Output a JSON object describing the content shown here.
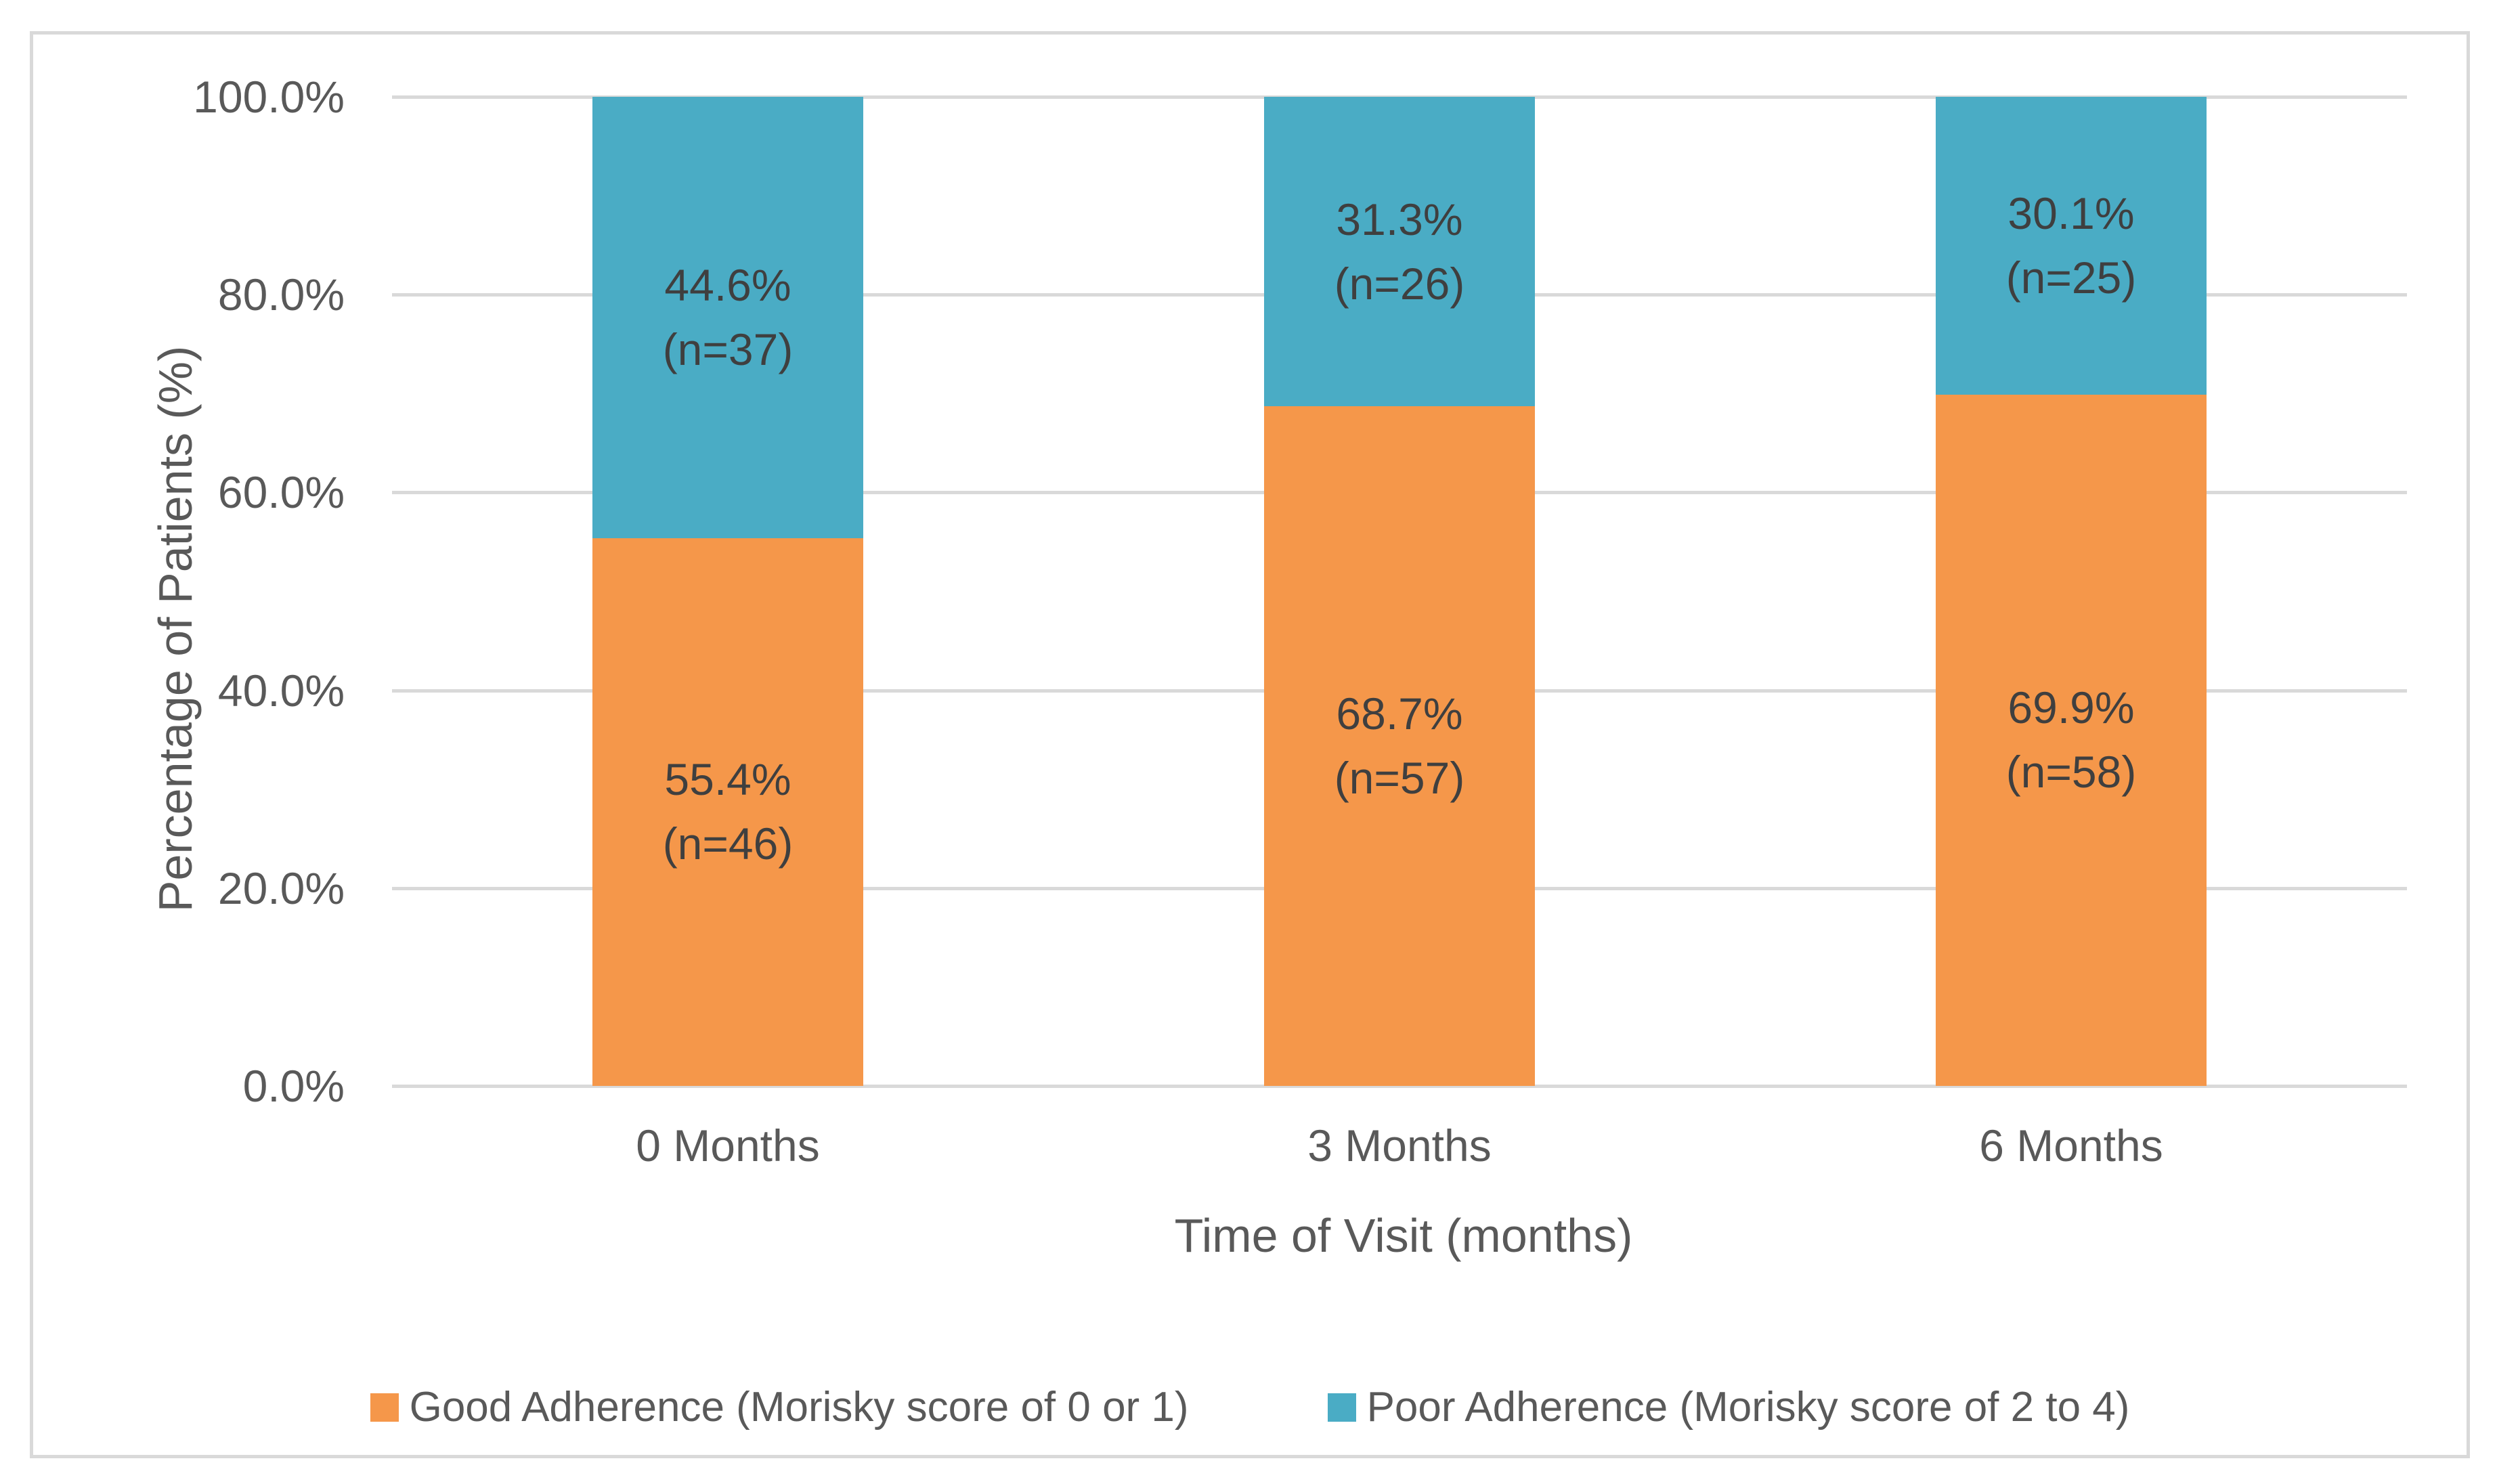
{
  "chart_data": {
    "type": "bar",
    "stacked": true,
    "title": "",
    "xlabel": "Time of Visit (months)",
    "ylabel": "Percentage of Patients (%)",
    "ylim": [
      0,
      100
    ],
    "grid": true,
    "legend_position": "bottom",
    "categories": [
      "0 Months",
      "3 Months",
      "6 Months"
    ],
    "yticks": [
      {
        "value": 0,
        "label": "0.0%"
      },
      {
        "value": 20,
        "label": "20.0%"
      },
      {
        "value": 40,
        "label": "40.0%"
      },
      {
        "value": 60,
        "label": "60.0%"
      },
      {
        "value": 80,
        "label": "80.0%"
      },
      {
        "value": 100,
        "label": "100.0%"
      }
    ],
    "series": [
      {
        "name": "Good Adherence (Morisky score of 0 or 1)",
        "color": "#F5974A",
        "values": [
          55.4,
          68.7,
          69.9
        ],
        "counts": [
          46,
          57,
          58
        ],
        "value_labels": [
          "55.4%",
          "68.7%",
          "69.9%"
        ],
        "n_labels": [
          "(n=46)",
          "(n=57)",
          "(n=58)"
        ]
      },
      {
        "name": "Poor Adherence (Morisky score of 2 to 4)",
        "color": "#4AACC5",
        "values": [
          44.6,
          31.3,
          30.1
        ],
        "counts": [
          37,
          26,
          25
        ],
        "value_labels": [
          "44.6%",
          "31.3%",
          "30.1%"
        ],
        "n_labels": [
          "(n=37)",
          "(n=26)",
          "(n=25)"
        ]
      }
    ]
  },
  "style": {
    "gridline_color": "#D9D9D9",
    "border_color": "#D9D9D9",
    "axis_text_color": "#595959",
    "bar_label_color": "#3F3F3F"
  }
}
